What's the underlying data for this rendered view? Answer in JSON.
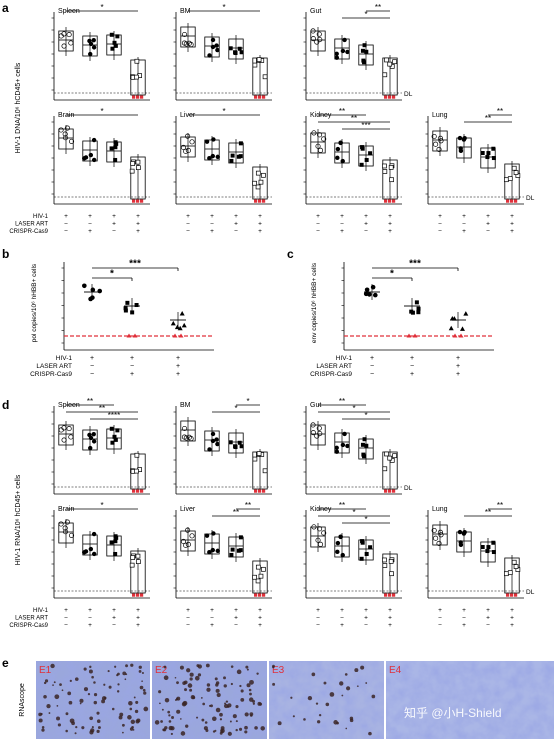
{
  "panel_letters": [
    "a",
    "b",
    "c",
    "d",
    "e"
  ],
  "common": {
    "dl_label": "DL",
    "row_labels": [
      "HIV-1",
      "LASER ART",
      "CRISPR-Cas9"
    ],
    "pm": {
      "plus": "+",
      "minus": "−"
    }
  },
  "panel_a": {
    "ylabel": "HIV-1 DNA/10⁶ hCD45+ cells",
    "tissues": [
      "Spleen",
      "BM",
      "Gut",
      "Brain",
      "Liver",
      "Kidney",
      "Lung"
    ],
    "sig": [
      [
        {
          "t": "*"
        }
      ],
      [
        {
          "t": "*"
        }
      ],
      [
        {
          "t": "**"
        },
        {
          "t": "*"
        }
      ],
      [
        {
          "t": "*"
        }
      ],
      [
        {
          "t": "*"
        }
      ],
      [
        {
          "t": "**"
        },
        {
          "t": "**"
        },
        {
          "t": "***"
        }
      ],
      [
        {
          "t": "**"
        },
        {
          "t": "**"
        }
      ]
    ]
  },
  "panel_b": {
    "ylabel": "pol copies/10⁶ hHBB+ cells",
    "sig": [
      {
        "t": "*"
      },
      {
        "t": "***"
      }
    ]
  },
  "panel_c": {
    "ylabel": "env copies/10⁶ hHBB+ cells",
    "sig": [
      {
        "t": "*"
      },
      {
        "t": "***"
      }
    ]
  },
  "panel_d": {
    "ylabel": "HIV-1 RNA/10⁶ hCD45+ cells",
    "tissues": [
      "Spleen",
      "BM",
      "Gut",
      "Brain",
      "Liver",
      "Kidney",
      "Lung"
    ],
    "sig": [
      [
        {
          "t": "**"
        },
        {
          "t": "**"
        },
        {
          "t": "****"
        }
      ],
      [
        {
          "t": "*"
        },
        {
          "t": "*"
        }
      ],
      [
        {
          "t": "**"
        },
        {
          "t": "*"
        },
        {
          "t": "*"
        }
      ],
      [
        {
          "t": "*"
        }
      ],
      [
        {
          "t": "**"
        },
        {
          "t": "**"
        }
      ],
      [
        {
          "t": "**"
        },
        {
          "t": "*"
        },
        {
          "t": "*"
        }
      ],
      [
        {
          "t": "**"
        },
        {
          "t": "**"
        }
      ]
    ]
  },
  "panel_e": {
    "ylabel": "RNAscope",
    "tiles": [
      "E1",
      "E2",
      "E3",
      "E4"
    ],
    "watermark": "知乎 @小H-Shield"
  }
}
